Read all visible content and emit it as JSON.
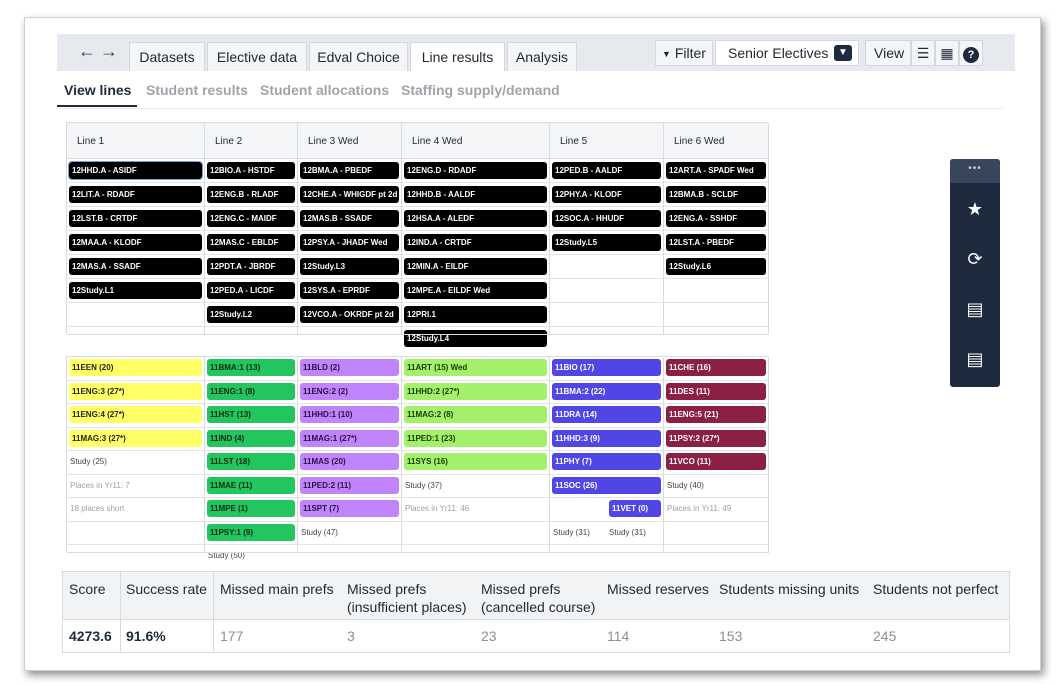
{
  "nav": {
    "back_icon": "←",
    "forward_icon": "→"
  },
  "tabs": [
    "Datasets",
    "Elective data",
    "Edval Choice",
    "Line results",
    "Analysis"
  ],
  "toolbar": {
    "filter_label": "Filter",
    "filter_icon": "▼",
    "dataset_select": "Senior Electives",
    "view_label": "View",
    "list_icon": "☰",
    "table_icon": "▦",
    "help_icon": "?"
  },
  "subtabs": [
    "View lines",
    "Student results",
    "Student allocations",
    "Staffing supply/demand"
  ],
  "upper_grid": {
    "headers": [
      "Line 1",
      "Line 2",
      "Line 3   Wed",
      "Line 4   Wed",
      "Line 5",
      "Line 6   Wed"
    ],
    "columns": [
      [
        "12HHD.A - ASIDF",
        "12LIT.A - RDADF",
        "12LST.B - CRTDF",
        "12MAA.A - KLODF",
        "12MAS.A - SSADF",
        "12Study.L1"
      ],
      [
        "12BIO.A - HSTDF",
        "12ENG.B - RLADF",
        "12ENG.C - MAIDF",
        "12MAS.C - EBLDF",
        "12PDT.A - JBRDF",
        "12PED.A - LICDF",
        "12Study.L2"
      ],
      [
        "12BMA.A - PBEDF",
        "12CHE.A - WHIGDF pt 2d",
        "12MAS.B - SSADF",
        "12PSY.A - JHADF Wed",
        "12Study.L3",
        "12SYS.A - EPRDF",
        "12VCO.A - OKRDF pt 2d"
      ],
      [
        "12ENG.D - RDADF",
        "12HHD.B - AALDF",
        "12HSA.A - ALEDF",
        "12IND.A - CRTDF",
        "12MIN.A - EILDF",
        "12MPE.A - EILDF Wed",
        "12PRI.1",
        "12Study.L4"
      ],
      [
        "12PED.B - AALDF",
        "12PHY.A - KLODF",
        "12SOC.A - HHUDF",
        "12Study.L5"
      ],
      [
        "12ART.A - SPADF Wed",
        "12BMA.B - SCLDF",
        "12ENG.A - SSHDF",
        "12LST.A - PBEDF",
        "12Study.L6"
      ]
    ]
  },
  "lower_grid": {
    "colors": [
      "#ffff66",
      "#22c55e",
      "#c084fc",
      "#a3f06a",
      "#4f46e5",
      "#8b1f45"
    ],
    "columns": [
      {
        "cells": [
          "11EEN (20)",
          "11ENG:3 (27*)",
          "11ENG:4 (27*)",
          "11MAG:3 (27*)"
        ],
        "notes": [
          "Study (25)",
          "Places in Yr11: 7",
          "18 places short"
        ]
      },
      {
        "cells": [
          "11BMA:1 (13)",
          "11ENG:1 (8)",
          "11HST (13)",
          "11IND (4)",
          "11LST (18)",
          "11MAE (11)",
          "11MPE (1)",
          "11PSY:1 (9)"
        ],
        "notes": [
          "Study (50)"
        ]
      },
      {
        "cells": [
          "11BLD (2)",
          "11ENG:2 (2)",
          "11HHD:1 (10)",
          "11MAG:1 (27*)",
          "11MAS (20)",
          "11PED:2 (11)",
          "11SPT (7)"
        ],
        "notes": [
          "Study (47)"
        ]
      },
      {
        "cells": [
          "11ART (15) Wed",
          "11HHD:2 (27*)",
          "11MAG:2 (8)",
          "11PED:1 (23)",
          "11SYS (16)"
        ],
        "notes": [
          "Study (37)",
          "Places in Yr11: 46"
        ]
      },
      {
        "cells": [
          "11BIO (17)",
          "11BMA:2 (22)",
          "11DRA (14)",
          "11HHD:3 (9)",
          "11PHY (7)",
          "11SOC (26)",
          "11VET (0)"
        ],
        "notes": [
          "Study (31)",
          "Study (31)"
        ]
      },
      {
        "cells": [
          "11CHE (16)",
          "11DES (11)",
          "11ENG:5 (21)",
          "11PSY:2 (27*)",
          "11VCO (11)"
        ],
        "notes": [
          "Study (40)",
          "Places in Yr11: 49"
        ]
      }
    ]
  },
  "side_panel": {
    "handle": "•••",
    "icons": [
      "star-icon",
      "refresh-icon",
      "add-sheet-icon",
      "export-sheet-icon"
    ]
  },
  "stats": {
    "headers": [
      "Score",
      "Success rate",
      "Missed main prefs",
      "Missed prefs (insufficient places)",
      "Missed prefs (cancelled course)",
      "Missed reserves",
      "Students missing units",
      "Students not perfect"
    ],
    "values": [
      "4273.6",
      "91.6%",
      "177",
      "3",
      "23",
      "114",
      "153",
      "245"
    ]
  }
}
